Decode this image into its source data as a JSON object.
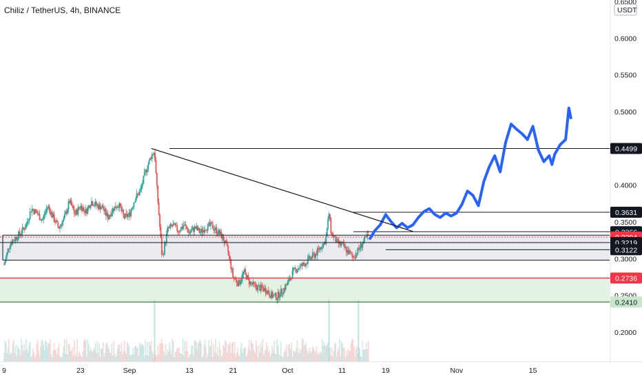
{
  "header": {
    "title": "Chiliz / TetherUS, 4h, BINANCE"
  },
  "chart_data": {
    "type": "candlestick",
    "currency": "USDT",
    "ylim": [
      0.145,
      0.655
    ],
    "y_ticks": [
      "0.6500",
      "0.6000",
      "0.5500",
      "0.5000",
      "0.4500",
      "0.4000",
      "0.3500",
      "0.3000",
      "0.2500",
      "0.2000"
    ],
    "y_tick_values": [
      0.65,
      0.6,
      0.55,
      0.5,
      0.45,
      0.4,
      0.35,
      0.3,
      0.25,
      0.2
    ],
    "x_ticks": [
      "9",
      "23",
      "Sep",
      "13",
      "21",
      "Oct",
      "11",
      "19",
      "Nov",
      "15"
    ],
    "x_tick_days": [
      9,
      23,
      32,
      43,
      51,
      61,
      71,
      79,
      92,
      106
    ],
    "x_range_days": [
      9,
      109
    ],
    "price_levels": [
      {
        "label": "0.4499",
        "value": 0.4499,
        "style": "black"
      },
      {
        "label": "0.3631",
        "value": 0.3631,
        "style": "black"
      },
      {
        "label": "0.3366",
        "value": 0.3366,
        "style": "black"
      },
      {
        "label": "0.3294",
        "value": 0.3294,
        "style": "red"
      },
      {
        "label": "0.3219",
        "value": 0.3219,
        "style": "black"
      },
      {
        "label": "0.3122",
        "value": 0.3122,
        "style": "black"
      },
      {
        "label": "0.2736",
        "value": 0.2736,
        "style": "red"
      },
      {
        "label": "0.2410",
        "value": 0.241,
        "style": "green"
      }
    ],
    "zones": [
      {
        "name": "resistance-zone",
        "from": 0.298,
        "to": 0.332,
        "color": "#e9ebf0"
      },
      {
        "name": "support-zone",
        "from": 0.241,
        "to": 0.2736,
        "color": "#e3f2e3"
      }
    ],
    "trendline": {
      "start": {
        "day": 36,
        "value": 0.4499
      },
      "end": {
        "day": 84,
        "value": 0.337
      }
    },
    "price_path": [
      [
        9,
        0.292
      ],
      [
        10,
        0.32
      ],
      [
        12,
        0.335
      ],
      [
        13,
        0.345
      ],
      [
        14,
        0.368
      ],
      [
        15,
        0.362
      ],
      [
        16,
        0.352
      ],
      [
        17,
        0.372
      ],
      [
        18,
        0.356
      ],
      [
        19,
        0.342
      ],
      [
        20,
        0.354
      ],
      [
        21,
        0.378
      ],
      [
        22,
        0.36
      ],
      [
        23,
        0.372
      ],
      [
        24,
        0.364
      ],
      [
        25,
        0.378
      ],
      [
        26,
        0.372
      ],
      [
        27,
        0.37
      ],
      [
        28,
        0.356
      ],
      [
        29,
        0.368
      ],
      [
        30,
        0.374
      ],
      [
        31,
        0.356
      ],
      [
        32,
        0.36
      ],
      [
        33,
        0.382
      ],
      [
        34,
        0.392
      ],
      [
        35,
        0.42
      ],
      [
        36,
        0.44
      ],
      [
        36.6,
        0.446
      ],
      [
        37,
        0.398
      ],
      [
        38,
        0.3
      ],
      [
        39,
        0.34
      ],
      [
        40,
        0.345
      ],
      [
        41,
        0.338
      ],
      [
        42,
        0.346
      ],
      [
        43,
        0.335
      ],
      [
        44,
        0.342
      ],
      [
        45,
        0.336
      ],
      [
        46,
        0.343
      ],
      [
        47,
        0.345
      ],
      [
        48,
        0.338
      ],
      [
        49,
        0.33
      ],
      [
        50,
        0.312
      ],
      [
        51,
        0.275
      ],
      [
        52,
        0.266
      ],
      [
        53,
        0.282
      ],
      [
        54,
        0.268
      ],
      [
        55,
        0.262
      ],
      [
        56,
        0.26
      ],
      [
        57,
        0.258
      ],
      [
        58,
        0.25
      ],
      [
        59,
        0.248
      ],
      [
        60,
        0.256
      ],
      [
        61,
        0.266
      ],
      [
        62,
        0.282
      ],
      [
        63,
        0.288
      ],
      [
        64,
        0.292
      ],
      [
        65,
        0.3
      ],
      [
        66,
        0.305
      ],
      [
        67,
        0.315
      ],
      [
        68,
        0.325
      ],
      [
        68.6,
        0.362
      ],
      [
        69,
        0.335
      ],
      [
        70,
        0.322
      ],
      [
        71,
        0.318
      ],
      [
        72,
        0.31
      ],
      [
        73,
        0.302
      ],
      [
        74,
        0.312
      ],
      [
        75,
        0.324
      ],
      [
        76,
        0.332
      ]
    ],
    "projection_path": [
      [
        76,
        0.326
      ],
      [
        77,
        0.338
      ],
      [
        78,
        0.346
      ],
      [
        79,
        0.36
      ],
      [
        80,
        0.35
      ],
      [
        81,
        0.342
      ],
      [
        82,
        0.348
      ],
      [
        83,
        0.342
      ],
      [
        84,
        0.346
      ],
      [
        85,
        0.356
      ],
      [
        86,
        0.364
      ],
      [
        87,
        0.368
      ],
      [
        88,
        0.36
      ],
      [
        89,
        0.356
      ],
      [
        90,
        0.362
      ],
      [
        91,
        0.358
      ],
      [
        92,
        0.362
      ],
      [
        93,
        0.374
      ],
      [
        94,
        0.392
      ],
      [
        95,
        0.386
      ],
      [
        96,
        0.372
      ],
      [
        97,
        0.405
      ],
      [
        98,
        0.425
      ],
      [
        99,
        0.44
      ],
      [
        100,
        0.418
      ],
      [
        101,
        0.458
      ],
      [
        102,
        0.483
      ],
      [
        103,
        0.476
      ],
      [
        104,
        0.47
      ],
      [
        105,
        0.462
      ],
      [
        106,
        0.48
      ],
      [
        107,
        0.448
      ],
      [
        108,
        0.432
      ],
      [
        109,
        0.44
      ],
      [
        109.5,
        0.428
      ],
      [
        110,
        0.442
      ],
      [
        111,
        0.455
      ],
      [
        112,
        0.462
      ],
      [
        112.6,
        0.505
      ],
      [
        113,
        0.49
      ]
    ],
    "volume_spikes_days": [
      36.6,
      68.6,
      74
    ]
  }
}
